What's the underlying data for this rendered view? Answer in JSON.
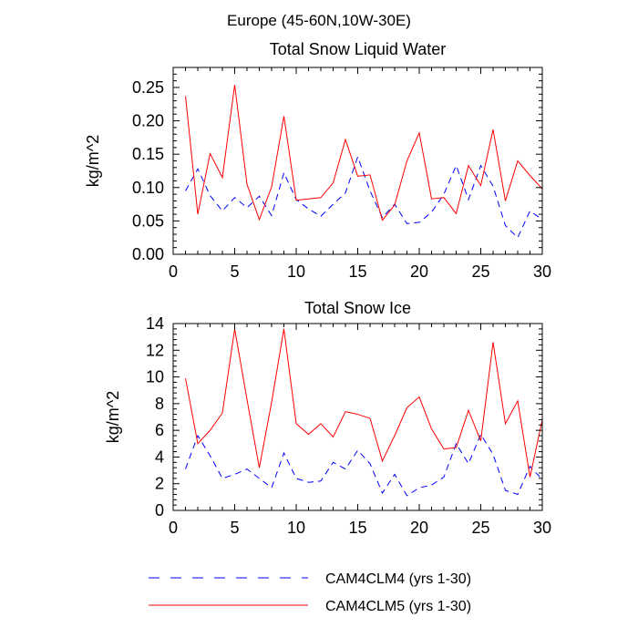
{
  "figure": {
    "suptitle": "Europe (45-60N,10W-30E)"
  },
  "legend": [
    {
      "label": "CAM4CLM4 (yrs 1-30)",
      "color": "#0000ff",
      "style": "dashed"
    },
    {
      "label": "CAM4CLM5 (yrs 1-30)",
      "color": "#ff0000",
      "style": "solid"
    }
  ],
  "chart_data": [
    {
      "type": "line",
      "title": "Total Snow Liquid Water",
      "xlabel": "",
      "ylabel": "kg/m^2",
      "xlim": [
        0,
        30
      ],
      "ylim": [
        0,
        0.28
      ],
      "xticks": [
        0,
        5,
        10,
        15,
        20,
        25,
        30
      ],
      "xtick_labels": [
        "0",
        "5",
        "10",
        "15",
        "20",
        "25",
        "30"
      ],
      "yticks": [
        0,
        0.05,
        0.1,
        0.15,
        0.2,
        0.25
      ],
      "ytick_labels": [
        "0.00",
        "0.05",
        "0.10",
        "0.15",
        "0.20",
        "0.25"
      ],
      "x": [
        1,
        2,
        3,
        4,
        5,
        6,
        7,
        8,
        9,
        10,
        11,
        12,
        13,
        14,
        15,
        16,
        17,
        18,
        19,
        20,
        21,
        22,
        23,
        24,
        25,
        26,
        27,
        28,
        29,
        30
      ],
      "series": [
        {
          "name": "CAM4CLM4 (yrs 1-30)",
          "color": "#0000ff",
          "style": "dashed",
          "values": [
            0.095,
            0.128,
            0.088,
            0.065,
            0.085,
            0.07,
            0.087,
            0.058,
            0.122,
            0.082,
            0.068,
            0.057,
            0.075,
            0.092,
            0.146,
            0.095,
            0.055,
            0.075,
            0.046,
            0.048,
            0.063,
            0.09,
            0.133,
            0.082,
            0.133,
            0.102,
            0.043,
            0.025,
            0.065,
            0.052
          ]
        },
        {
          "name": "CAM4CLM5 (yrs 1-30)",
          "color": "#ff0000",
          "style": "solid",
          "values": [
            0.237,
            0.06,
            0.151,
            0.115,
            0.254,
            0.105,
            0.052,
            0.101,
            0.207,
            0.081,
            0.083,
            0.085,
            0.107,
            0.172,
            0.117,
            0.119,
            0.051,
            0.074,
            0.14,
            0.182,
            0.083,
            0.085,
            0.061,
            0.133,
            0.103,
            0.187,
            0.08,
            0.14,
            0.118,
            0.098
          ]
        }
      ]
    },
    {
      "type": "line",
      "title": "Total Snow Ice",
      "xlabel": "",
      "ylabel": "kg/m^2",
      "xlim": [
        0,
        30
      ],
      "ylim": [
        0,
        14
      ],
      "xticks": [
        0,
        5,
        10,
        15,
        20,
        25,
        30
      ],
      "xtick_labels": [
        "0",
        "5",
        "10",
        "15",
        "20",
        "25",
        "30"
      ],
      "yticks": [
        0,
        2,
        4,
        6,
        8,
        10,
        12,
        14
      ],
      "ytick_labels": [
        "0",
        "2",
        "4",
        "6",
        "8",
        "10",
        "12",
        "14"
      ],
      "x": [
        1,
        2,
        3,
        4,
        5,
        6,
        7,
        8,
        9,
        10,
        11,
        12,
        13,
        14,
        15,
        16,
        17,
        18,
        19,
        20,
        21,
        22,
        23,
        24,
        25,
        26,
        27,
        28,
        29,
        30
      ],
      "series": [
        {
          "name": "CAM4CLM4 (yrs 1-30)",
          "color": "#0000ff",
          "style": "dashed",
          "values": [
            3.1,
            5.6,
            4.1,
            2.4,
            2.7,
            3.1,
            2.4,
            1.7,
            4.3,
            2.4,
            2.1,
            2.2,
            3.6,
            3.1,
            4.5,
            3.5,
            1.3,
            2.7,
            1.1,
            1.7,
            1.9,
            2.5,
            5.0,
            3.5,
            5.7,
            4.2,
            1.5,
            1.2,
            3.3,
            2.3
          ]
        },
        {
          "name": "CAM4CLM5 (yrs 1-30)",
          "color": "#ff0000",
          "style": "solid",
          "values": [
            9.9,
            5.0,
            6.0,
            7.3,
            13.6,
            8.3,
            3.2,
            8.1,
            13.6,
            6.5,
            5.7,
            6.5,
            5.5,
            7.4,
            7.2,
            6.9,
            3.7,
            5.6,
            7.7,
            8.5,
            6.1,
            4.6,
            4.7,
            7.5,
            5.2,
            12.6,
            6.5,
            8.2,
            2.5,
            6.8
          ]
        }
      ]
    }
  ]
}
